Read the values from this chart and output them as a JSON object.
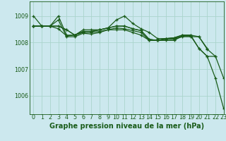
{
  "title": "Graphe pression niveau de la mer (hPa)",
  "bg_color": "#cce8ee",
  "grid_color": "#aad4cc",
  "line_color": "#1a5c1a",
  "xlim": [
    -0.5,
    23
  ],
  "ylim": [
    1005.3,
    1009.55
  ],
  "yticks": [
    1006,
    1007,
    1008,
    1009
  ],
  "xticks": [
    0,
    1,
    2,
    3,
    4,
    5,
    6,
    7,
    8,
    9,
    10,
    11,
    12,
    13,
    14,
    15,
    16,
    17,
    18,
    19,
    20,
    21,
    22,
    23
  ],
  "lines": [
    [
      1009.0,
      1008.62,
      1008.62,
      1009.0,
      1008.28,
      1008.28,
      1008.48,
      1008.48,
      1008.48,
      1008.55,
      1008.85,
      1009.0,
      1008.72,
      1008.52,
      1008.38,
      1008.15,
      1008.15,
      1008.15,
      1008.25,
      1008.25,
      1007.78,
      1007.48,
      1006.65,
      1005.5
    ],
    [
      1008.62,
      1008.62,
      1008.62,
      1008.62,
      1008.48,
      1008.28,
      1008.42,
      1008.42,
      1008.48,
      1008.55,
      1008.62,
      1008.62,
      1008.52,
      1008.45,
      1008.12,
      1008.08,
      1008.15,
      1008.18,
      1008.28,
      1008.28,
      1008.22,
      1007.75,
      1007.48,
      null
    ],
    [
      1008.62,
      1008.62,
      1008.62,
      1008.52,
      1008.25,
      1008.28,
      1008.38,
      1008.38,
      1008.42,
      1008.48,
      1008.55,
      1008.52,
      1008.45,
      1008.38,
      1008.08,
      1008.08,
      1008.12,
      1008.12,
      1008.22,
      1008.22,
      1008.22,
      1007.78,
      null,
      null
    ],
    [
      1008.62,
      1008.62,
      1008.62,
      1008.85,
      1008.22,
      1008.22,
      1008.35,
      1008.32,
      1008.38,
      1008.48,
      1008.48,
      1008.48,
      1008.38,
      1008.28,
      1008.08,
      1008.08,
      1008.08,
      1008.08,
      1008.25,
      1008.25,
      null,
      null,
      null,
      null
    ]
  ],
  "line5": [
    1008.62,
    1008.62,
    1008.62,
    1008.62,
    1008.48,
    1008.28,
    1008.42,
    1008.42,
    1008.48,
    1008.55,
    1008.62,
    1008.62,
    1008.52,
    1008.45,
    1008.12,
    1008.08,
    1008.15,
    1008.18,
    1008.28,
    1008.28,
    1007.78,
    1007.48,
    1007.48,
    1006.65
  ],
  "marker": "+",
  "marker_size": 3,
  "line_width": 0.9,
  "tick_fontsize": 5.8,
  "title_fontsize": 7.0
}
